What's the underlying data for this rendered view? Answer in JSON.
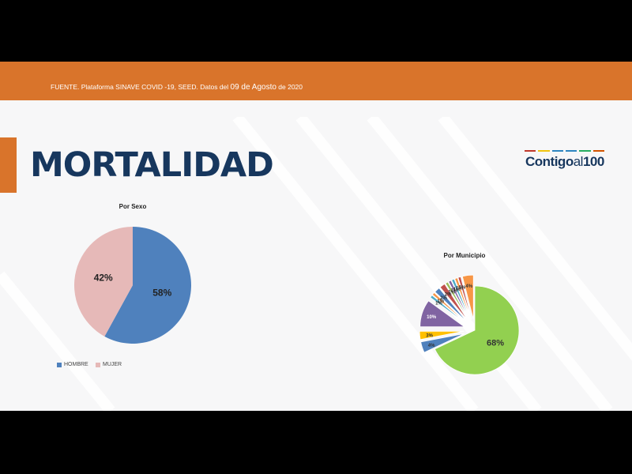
{
  "header": {
    "source_prefix": "FUENTE. Plataforma SINAVE COVID -19, SEED. Datos del ",
    "source_date": "09 de Agosto",
    "source_suffix": " de 2020"
  },
  "title": "MORTALIDAD",
  "logo": {
    "text_main": "Contigo",
    "text_al": "al",
    "text_num": "100",
    "stripe_colors": [
      "#c0392b",
      "#f1c40f",
      "#2e86c1",
      "#2e86c1",
      "#27ae60",
      "#d35400"
    ]
  },
  "chart_data": [
    {
      "type": "pie",
      "title": "Por Sexo",
      "categories": [
        "HOMBRE",
        "MUJER"
      ],
      "values": [
        58,
        42
      ],
      "labels": [
        "58%",
        "42%"
      ],
      "colors": [
        "#4f81bd",
        "#e6b9b8"
      ],
      "legend": "bottom"
    },
    {
      "type": "pie",
      "title": "Por Municipio",
      "values": [
        68,
        4,
        3,
        10,
        1,
        1,
        2,
        2,
        1,
        1,
        1,
        1,
        1,
        4
      ],
      "labels": [
        "68%",
        "4%",
        "3%",
        "10%",
        "1%",
        "1%",
        "2%",
        "2%",
        "1%",
        "1%",
        "1%",
        "1%",
        "1%",
        "4%"
      ],
      "colors": [
        "#92d050",
        "#4f81bd",
        "#ffc000",
        "#8064a2",
        "#4bacc6",
        "#f79646",
        "#4f81bd",
        "#c0504d",
        "#9bbb59",
        "#8064a2",
        "#4bacc6",
        "#f79646",
        "#c0504d",
        "#f79646"
      ],
      "legend": "none"
    }
  ]
}
